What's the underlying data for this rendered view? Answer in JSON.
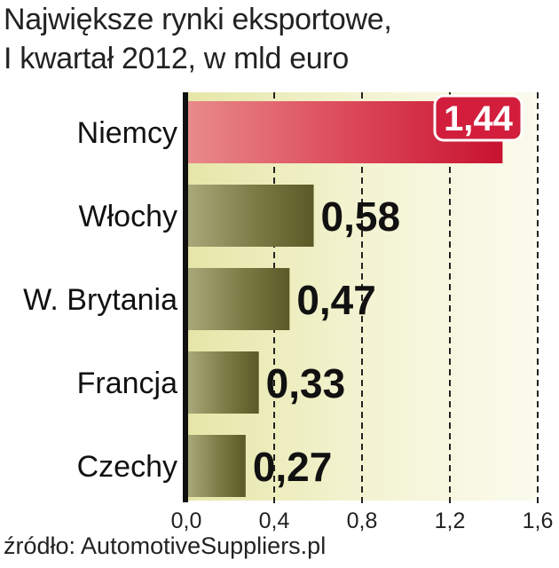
{
  "title_lines": [
    "Największe rynki eksportowe,",
    "I kwartał 2012, w mld euro"
  ],
  "source": "źródło: AutomotiveSuppliers.pl",
  "colors": {
    "highlight_bar": "#d63048",
    "bar": "#6b6b33",
    "plot_background": "#f1f1c8",
    "highlight_badge": "#d21e3c"
  },
  "chart_data": {
    "type": "bar",
    "orientation": "horizontal",
    "title": "Największe rynki eksportowe, I kwartał 2012, w mld euro",
    "categories": [
      "Niemcy",
      "Włochy",
      "W. Brytania",
      "Francja",
      "Czechy"
    ],
    "values": [
      1.44,
      0.58,
      0.47,
      0.33,
      0.27
    ],
    "value_labels": [
      "1,44",
      "0,58",
      "0,47",
      "0,33",
      "0,27"
    ],
    "highlight_index": 0,
    "xlim": [
      0,
      1.6
    ],
    "xticks": [
      0,
      0.4,
      0.8,
      1.2,
      1.6
    ],
    "xtick_labels": [
      "0,0",
      "0,4",
      "0,8",
      "1,2",
      "1,6"
    ],
    "grid": "vertical dashed",
    "xlabel": "",
    "ylabel": ""
  }
}
